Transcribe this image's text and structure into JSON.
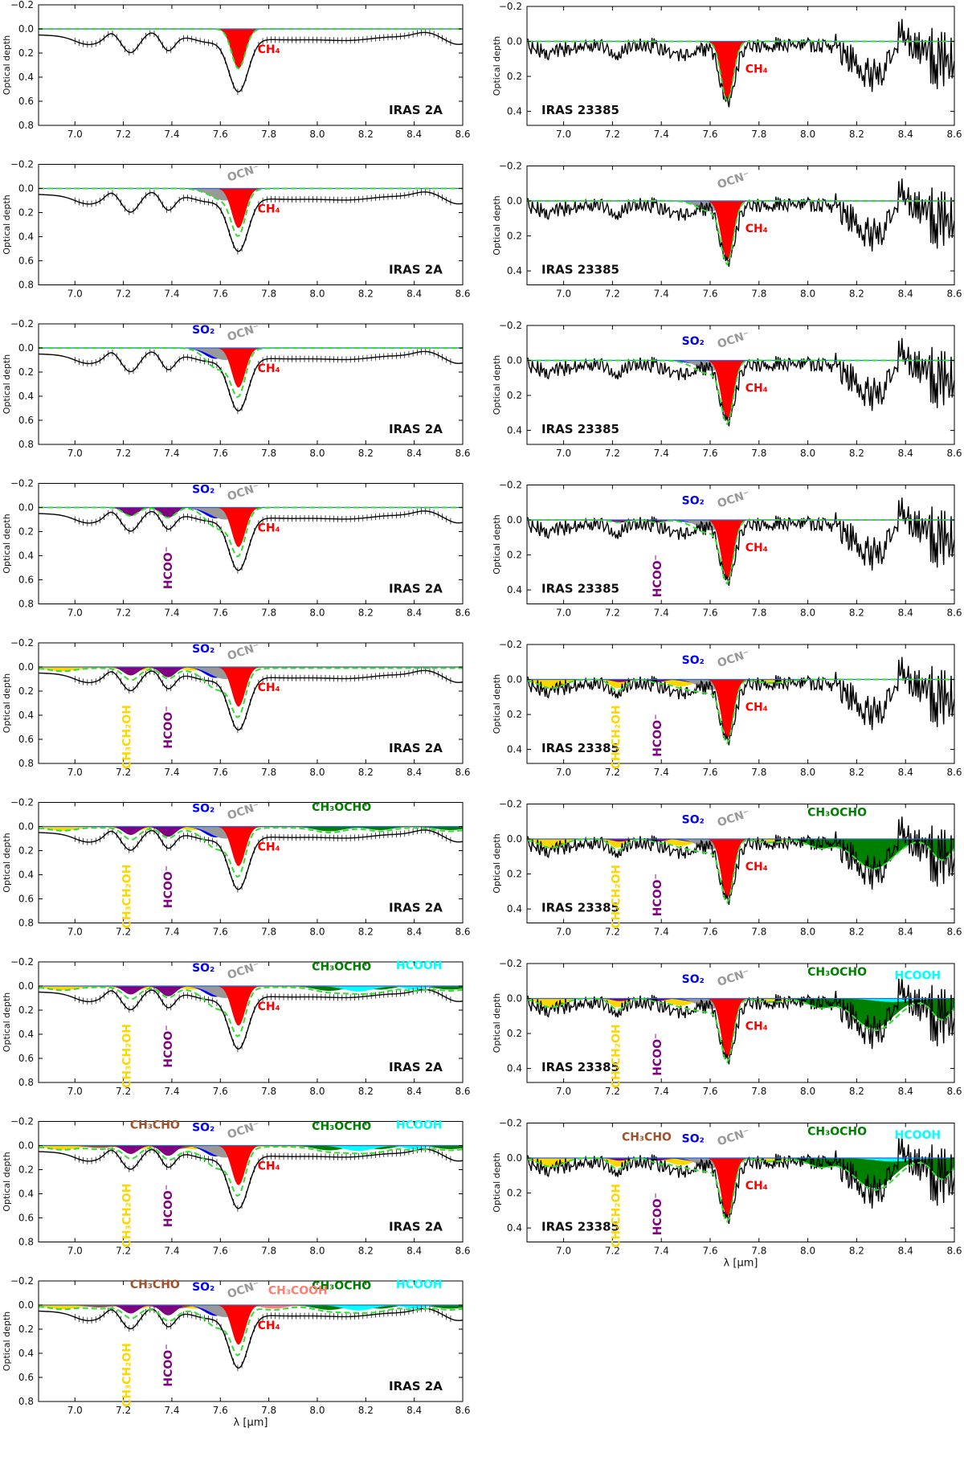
{
  "chart_data": {
    "type": "area",
    "xlabel": "λ [μm]",
    "ylabel": "Optical depth",
    "x_ticks": [
      "7.0",
      "7.2",
      "7.4",
      "7.6",
      "7.8",
      "8.0",
      "8.2",
      "8.4",
      "8.6"
    ],
    "xlim": [
      6.85,
      8.6
    ],
    "colors": {
      "CH4": "#ff0000",
      "OCN": "#999999",
      "SO2": "#0000ff",
      "HCOO": "#800080",
      "CH3CH2OH": "#ffd700",
      "CH3OCHO": "#008000",
      "HCOOH": "#00ffff",
      "CH3CHO": "#a0522d",
      "CH3COOH": "#fa8072",
      "fit": "#33dd33",
      "data": "#000000"
    },
    "species_labels": {
      "CH4": "CH₄",
      "OCN": "OCN⁻",
      "SO2": "SO₂",
      "HCOO": "HCOO⁻",
      "CH3CH2OH": "CH₃CH₂OH",
      "CH3OCHO": "CH₃OCHO",
      "HCOOH": "HCOOH",
      "CH3CHO": "CH₃CHO",
      "CH3COOH": "CH₃COOH"
    },
    "sources": {
      "left": {
        "name": "IRAS 2A",
        "ylim": [
          0.8,
          -0.2
        ],
        "y_ticks": [
          "−0.2",
          "0.0",
          "0.2",
          "0.4",
          "0.6",
          "0.8"
        ],
        "panels": [
          {
            "species": [
              "CH4"
            ]
          },
          {
            "species": [
              "CH4",
              "OCN"
            ]
          },
          {
            "species": [
              "CH4",
              "OCN",
              "SO2"
            ]
          },
          {
            "species": [
              "CH4",
              "OCN",
              "SO2",
              "HCOO"
            ]
          },
          {
            "species": [
              "CH4",
              "OCN",
              "SO2",
              "HCOO",
              "CH3CH2OH"
            ]
          },
          {
            "species": [
              "CH4",
              "OCN",
              "SO2",
              "HCOO",
              "CH3CH2OH",
              "CH3OCHO"
            ]
          },
          {
            "species": [
              "CH4",
              "OCN",
              "SO2",
              "HCOO",
              "CH3CH2OH",
              "CH3OCHO",
              "HCOOH"
            ]
          },
          {
            "species": [
              "CH4",
              "OCN",
              "SO2",
              "HCOO",
              "CH3CH2OH",
              "CH3OCHO",
              "HCOOH",
              "CH3CHO"
            ]
          },
          {
            "species": [
              "CH4",
              "OCN",
              "SO2",
              "HCOO",
              "CH3CH2OH",
              "CH3OCHO",
              "HCOOH",
              "CH3CHO",
              "CH3COOH"
            ]
          }
        ],
        "spectrum_peak_depth": 0.57,
        "spectrum_peak_lambda": 7.68
      },
      "right": {
        "name": "IRAS 23385",
        "ylim": [
          0.48,
          -0.2
        ],
        "y_ticks": [
          "−0.2",
          "0.0",
          "0.2",
          "0.4"
        ],
        "panels": [
          {
            "species": [
              "CH4"
            ]
          },
          {
            "species": [
              "CH4",
              "OCN"
            ]
          },
          {
            "species": [
              "CH4",
              "OCN",
              "SO2"
            ]
          },
          {
            "species": [
              "CH4",
              "OCN",
              "SO2",
              "HCOO"
            ]
          },
          {
            "species": [
              "CH4",
              "OCN",
              "SO2",
              "HCOO",
              "CH3CH2OH"
            ]
          },
          {
            "species": [
              "CH4",
              "OCN",
              "SO2",
              "HCOO",
              "CH3CH2OH",
              "CH3OCHO"
            ]
          },
          {
            "species": [
              "CH4",
              "OCN",
              "SO2",
              "HCOO",
              "CH3CH2OH",
              "CH3OCHO",
              "HCOOH"
            ]
          },
          {
            "species": [
              "CH4",
              "OCN",
              "SO2",
              "HCOO",
              "CH3CH2OH",
              "CH3OCHO",
              "HCOOH",
              "CH3CHO"
            ]
          }
        ],
        "spectrum_peak_depth": 0.38,
        "spectrum_peak_lambda": 7.67
      }
    }
  }
}
